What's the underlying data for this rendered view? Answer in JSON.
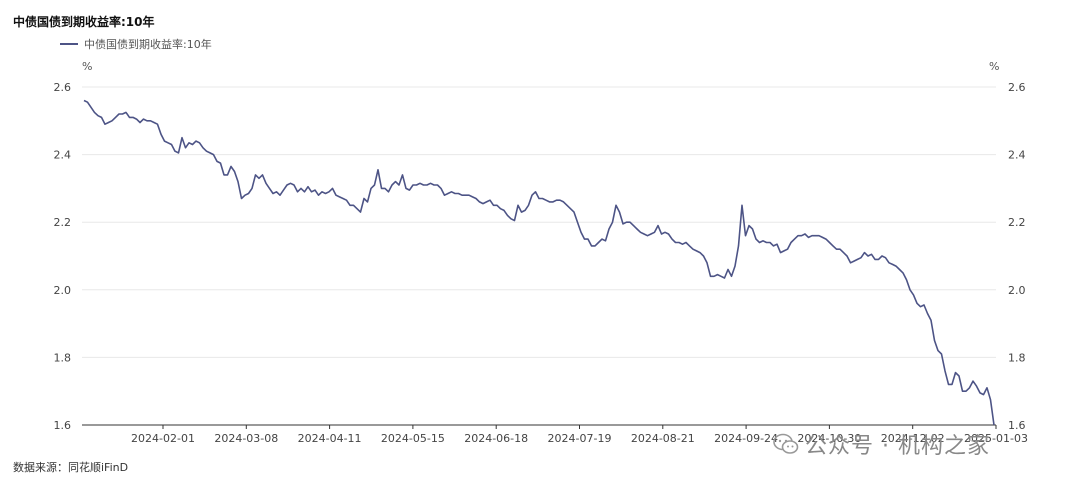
{
  "title": "中债国债到期收益率:10年",
  "source": "数据来源：同花顺iFinD",
  "watermark": "公众号 · 机构之家",
  "chart_data": {
    "type": "line",
    "title": "中债国债到期收益率:10年",
    "ylabel_left": "%",
    "ylabel_right": "%",
    "ylim": [
      1.6,
      2.6
    ],
    "yticks": [
      "2.6",
      "2.4",
      "2.2",
      "2.0",
      "1.8",
      "1.6"
    ],
    "xticks": [
      "2024-02-01",
      "2024-03-08",
      "2024-04-11",
      "2024-05-15",
      "2024-06-18",
      "2024-07-19",
      "2024-08-21",
      "2024-09-24",
      "2024-10-30",
      "2024-12-02",
      "2025-01-03"
    ],
    "grid": true,
    "legend_position": "top-left",
    "colors": {
      "line": "#4d5486",
      "grid": "#e8e8e8",
      "axis": "#333333"
    },
    "series": [
      {
        "name": "中债国债到期收益率:10年",
        "values": [
          2.56,
          2.555,
          2.54,
          2.525,
          2.515,
          2.51,
          2.49,
          2.495,
          2.5,
          2.51,
          2.52,
          2.52,
          2.525,
          2.51,
          2.51,
          2.505,
          2.495,
          2.505,
          2.5,
          2.5,
          2.495,
          2.49,
          2.46,
          2.44,
          2.435,
          2.43,
          2.41,
          2.405,
          2.45,
          2.42,
          2.435,
          2.43,
          2.44,
          2.435,
          2.42,
          2.41,
          2.405,
          2.4,
          2.38,
          2.375,
          2.34,
          2.34,
          2.365,
          2.35,
          2.32,
          2.27,
          2.28,
          2.285,
          2.3,
          2.34,
          2.33,
          2.34,
          2.315,
          2.3,
          2.285,
          2.29,
          2.28,
          2.295,
          2.31,
          2.315,
          2.31,
          2.29,
          2.3,
          2.29,
          2.305,
          2.29,
          2.295,
          2.28,
          2.29,
          2.285,
          2.29,
          2.3,
          2.28,
          2.275,
          2.27,
          2.265,
          2.25,
          2.25,
          2.24,
          2.23,
          2.27,
          2.26,
          2.3,
          2.31,
          2.355,
          2.3,
          2.3,
          2.29,
          2.31,
          2.32,
          2.31,
          2.34,
          2.3,
          2.295,
          2.31,
          2.31,
          2.315,
          2.31,
          2.31,
          2.315,
          2.31,
          2.31,
          2.3,
          2.28,
          2.285,
          2.29,
          2.285,
          2.285,
          2.28,
          2.28,
          2.28,
          2.275,
          2.27,
          2.26,
          2.255,
          2.26,
          2.265,
          2.25,
          2.25,
          2.24,
          2.235,
          2.22,
          2.21,
          2.205,
          2.25,
          2.23,
          2.235,
          2.25,
          2.28,
          2.29,
          2.27,
          2.27,
          2.265,
          2.26,
          2.26,
          2.265,
          2.265,
          2.26,
          2.25,
          2.24,
          2.23,
          2.2,
          2.17,
          2.15,
          2.15,
          2.13,
          2.13,
          2.14,
          2.15,
          2.145,
          2.18,
          2.2,
          2.25,
          2.23,
          2.195,
          2.2,
          2.2,
          2.19,
          2.18,
          2.17,
          2.165,
          2.16,
          2.165,
          2.17,
          2.19,
          2.165,
          2.17,
          2.165,
          2.15,
          2.14,
          2.14,
          2.135,
          2.14,
          2.13,
          2.12,
          2.115,
          2.11,
          2.1,
          2.08,
          2.04,
          2.04,
          2.045,
          2.04,
          2.035,
          2.06,
          2.04,
          2.07,
          2.13,
          2.25,
          2.16,
          2.19,
          2.18,
          2.15,
          2.14,
          2.145,
          2.14,
          2.14,
          2.13,
          2.135,
          2.11,
          2.115,
          2.12,
          2.14,
          2.15,
          2.16,
          2.16,
          2.165,
          2.155,
          2.16,
          2.16,
          2.16,
          2.155,
          2.15,
          2.14,
          2.13,
          2.12,
          2.12,
          2.11,
          2.1,
          2.08,
          2.085,
          2.09,
          2.095,
          2.11,
          2.1,
          2.105,
          2.09,
          2.09,
          2.1,
          2.095,
          2.08,
          2.075,
          2.07,
          2.06,
          2.05,
          2.03,
          2.0,
          1.985,
          1.96,
          1.95,
          1.955,
          1.93,
          1.91,
          1.85,
          1.82,
          1.81,
          1.76,
          1.72,
          1.72,
          1.755,
          1.745,
          1.7,
          1.7,
          1.71,
          1.73,
          1.715,
          1.695,
          1.69,
          1.71,
          1.675,
          1.6
        ]
      }
    ]
  }
}
